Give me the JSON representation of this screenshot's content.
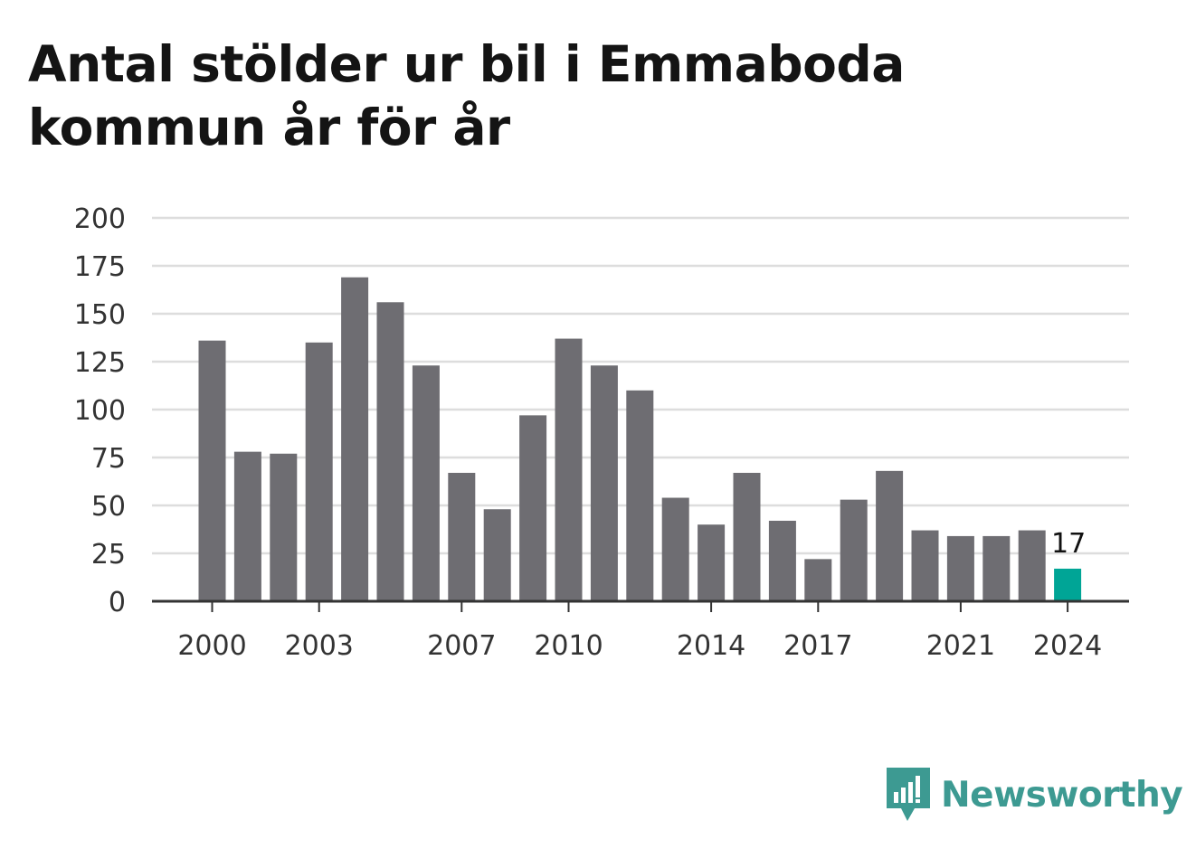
{
  "title": "Antal stölder ur bil i Emmaboda kommun år för år",
  "brand": {
    "name": "Newsworthy",
    "icon": "newsworthy-logo-icon",
    "color": "#3d9a92"
  },
  "colors": {
    "bar": "#6e6d72",
    "highlight": "#00a596",
    "grid": "#dddddd",
    "axis": "#333333"
  },
  "chart_data": {
    "type": "bar",
    "title": "Antal stölder ur bil i Emmaboda kommun år för år",
    "xlabel": "",
    "ylabel": "",
    "categories": [
      "2000",
      "2001",
      "2002",
      "2003",
      "2004",
      "2005",
      "2006",
      "2007",
      "2008",
      "2009",
      "2010",
      "2011",
      "2012",
      "2013",
      "2014",
      "2015",
      "2016",
      "2017",
      "2018",
      "2019",
      "2020",
      "2021",
      "2022",
      "2023",
      "2024"
    ],
    "values": [
      136,
      78,
      77,
      135,
      169,
      156,
      123,
      67,
      48,
      97,
      137,
      123,
      110,
      54,
      40,
      67,
      42,
      22,
      53,
      68,
      37,
      34,
      34,
      37,
      17
    ],
    "ylim": [
      0,
      200
    ],
    "yticks": [
      "0",
      "25",
      "50",
      "75",
      "100",
      "125",
      "150",
      "175",
      "200"
    ],
    "xticks_shown": [
      "2000",
      "2003",
      "2007",
      "2010",
      "2014",
      "2017",
      "2021",
      "2024"
    ],
    "highlight": {
      "category": "2024",
      "label": "17"
    },
    "grid": true,
    "legend": "none"
  }
}
